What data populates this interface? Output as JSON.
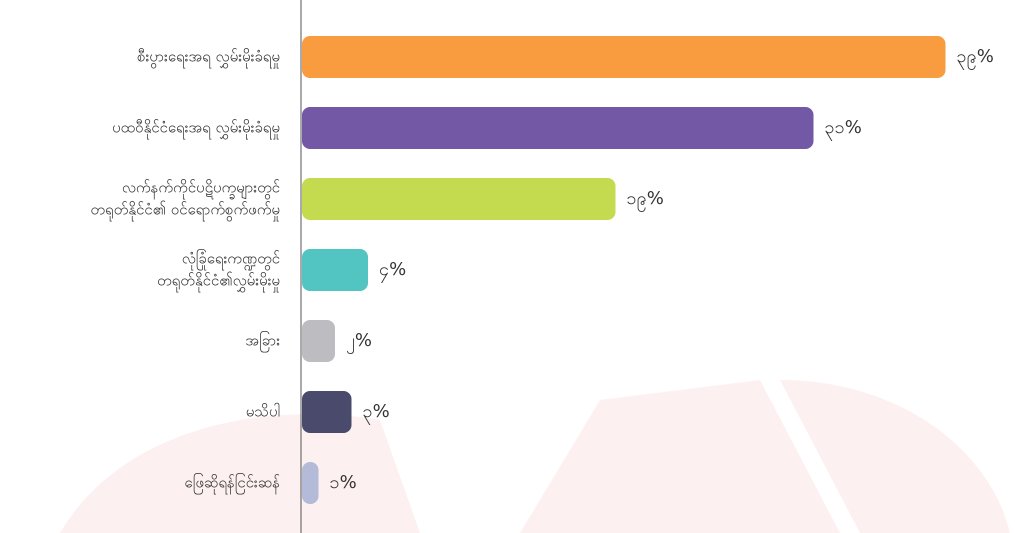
{
  "chart_data": {
    "type": "barh",
    "categories": [
      [
        "စီးပွားရေးအရ လွှမ်းမိုးခံရမှု"
      ],
      [
        "ပထဝီနိုင်ငံရေးအရ လွှမ်းမိုးခံရမှု"
      ],
      [
        "လက်နက်ကိုင်ပဋိပက္ခများတွင်",
        "တရုတ်နိုင်ငံ၏ ဝင်ရောက်စွက်ဖက်မှု"
      ],
      [
        "လုံခြုံရေးကဏ္ဍတွင်",
        "တရုတ်နိုင်ငံ၏လွှမ်းမိုးမှု"
      ],
      [
        "အခြား"
      ],
      [
        "မသိပါ"
      ],
      [
        "ဖြေဆိုရန်ငြင်းဆန်"
      ]
    ],
    "values": [
      39,
      31,
      19,
      4,
      2,
      3,
      1
    ],
    "value_labels": [
      "၃၉%",
      "၃၁%",
      "၁၉%",
      "၄%",
      "၂%",
      "၃%",
      "၁%"
    ],
    "colors": [
      "#f89c3f",
      "#7359a5",
      "#c5db4f",
      "#52c4c1",
      "#bdbdc1",
      "#4a4a6c",
      "#b3bbd8"
    ],
    "xlim": [
      0,
      40
    ]
  }
}
